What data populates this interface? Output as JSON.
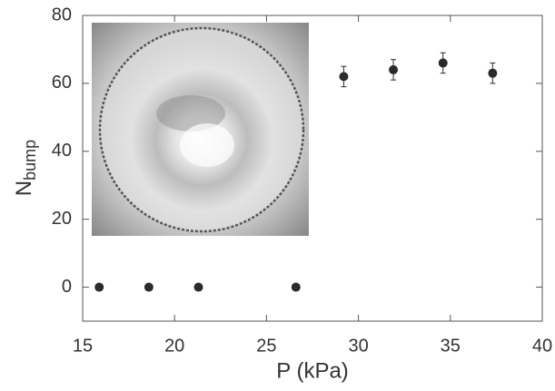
{
  "chart_data": {
    "type": "scatter",
    "xlabel": "P (kPa)",
    "ylabel": "N",
    "ylabel_subscript": "bump",
    "x": [
      15.9,
      18.6,
      21.3,
      26.6,
      29.2,
      31.9,
      34.6,
      37.3
    ],
    "values": [
      0,
      0,
      0,
      0,
      62,
      64,
      66,
      63
    ],
    "errors": [
      null,
      null,
      null,
      null,
      3,
      3,
      3,
      3
    ],
    "color": "#2b2b2b",
    "xlim": [
      15,
      40
    ],
    "xticks": [
      15,
      20,
      25,
      30,
      35,
      40
    ],
    "ylim": [
      -10,
      80
    ],
    "yticks": [
      0,
      20,
      40,
      60,
      80
    ]
  }
}
